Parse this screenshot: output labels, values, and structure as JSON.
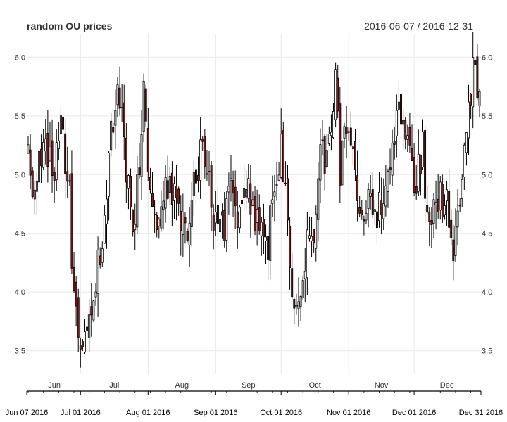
{
  "chart_data": {
    "type": "candlestick",
    "title": "random OU prices",
    "date_range": "2016-06-07 / 2016-12-31",
    "ylim": [
      3.3,
      6.2
    ],
    "y_ticks": [
      "3.5",
      "4.0",
      "4.5",
      "5.0",
      "5.5",
      "6.0"
    ],
    "month_labels": [
      "Jun",
      "Jul",
      "Aug",
      "Sep",
      "Oct",
      "Nov",
      "Dec"
    ],
    "date_labels": [
      "Jun 07 2016",
      "Jul 01 2016",
      "Aug 01 2016",
      "Sep 01 2016",
      "Oct 01 2016",
      "Nov 01 2016",
      "Dec 01 2016",
      "Dec 31 2016"
    ],
    "start_date": "2016-06-07",
    "end_date": "2016-12-31",
    "up_color": "#ffffff",
    "down_color": "#8b1a1a",
    "wick_color": "#000000",
    "close_path": [
      [
        "2016-06-07",
        5.15
      ],
      [
        "2016-06-10",
        4.75
      ],
      [
        "2016-06-14",
        5.4
      ],
      [
        "2016-06-18",
        5.0
      ],
      [
        "2016-06-22",
        5.4
      ],
      [
        "2016-06-26",
        4.8
      ],
      [
        "2016-06-28",
        3.85
      ],
      [
        "2016-07-01",
        3.55
      ],
      [
        "2016-07-05",
        3.7
      ],
      [
        "2016-07-09",
        4.2
      ],
      [
        "2016-07-12",
        4.6
      ],
      [
        "2016-07-15",
        5.3
      ],
      [
        "2016-07-18",
        5.75
      ],
      [
        "2016-07-22",
        5.1
      ],
      [
        "2016-07-25",
        4.6
      ],
      [
        "2016-07-28",
        5.0
      ],
      [
        "2016-07-30",
        5.8
      ],
      [
        "2016-08-02",
        4.8
      ],
      [
        "2016-08-06",
        4.6
      ],
      [
        "2016-08-10",
        4.9
      ],
      [
        "2016-08-14",
        4.8
      ],
      [
        "2016-08-18",
        4.5
      ],
      [
        "2016-08-22",
        4.9
      ],
      [
        "2016-08-26",
        5.2
      ],
      [
        "2016-08-31",
        4.7
      ],
      [
        "2016-09-04",
        4.5
      ],
      [
        "2016-09-08",
        4.85
      ],
      [
        "2016-09-12",
        4.55
      ],
      [
        "2016-09-16",
        4.9
      ],
      [
        "2016-09-20",
        4.6
      ],
      [
        "2016-09-24",
        4.3
      ],
      [
        "2016-09-28",
        4.9
      ],
      [
        "2016-10-01",
        5.3
      ],
      [
        "2016-10-05",
        4.2
      ],
      [
        "2016-10-09",
        3.75
      ],
      [
        "2016-10-13",
        4.4
      ],
      [
        "2016-10-16",
        4.5
      ],
      [
        "2016-10-19",
        5.1
      ],
      [
        "2016-10-23",
        5.2
      ],
      [
        "2016-10-26",
        5.8
      ],
      [
        "2016-10-28",
        5.05
      ],
      [
        "2016-10-31",
        5.5
      ],
      [
        "2016-11-04",
        5.0
      ],
      [
        "2016-11-07",
        4.7
      ],
      [
        "2016-11-10",
        4.85
      ],
      [
        "2016-11-14",
        4.6
      ],
      [
        "2016-11-18",
        5.0
      ],
      [
        "2016-11-22",
        5.3
      ],
      [
        "2016-11-26",
        5.6
      ],
      [
        "2016-11-29",
        5.1
      ],
      [
        "2016-12-01",
        4.9
      ],
      [
        "2016-12-05",
        5.2
      ],
      [
        "2016-12-08",
        4.5
      ],
      [
        "2016-12-12",
        4.8
      ],
      [
        "2016-12-16",
        4.75
      ],
      [
        "2016-12-19",
        4.3
      ],
      [
        "2016-12-22",
        4.7
      ],
      [
        "2016-12-26",
        5.5
      ],
      [
        "2016-12-28",
        5.85
      ],
      [
        "2016-12-31",
        5.8
      ]
    ]
  }
}
